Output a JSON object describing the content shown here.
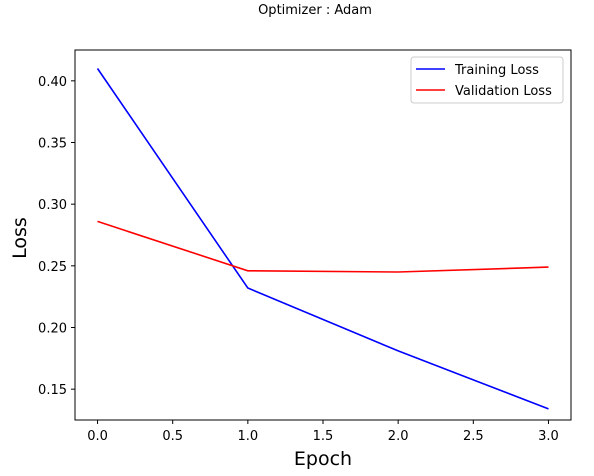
{
  "chart_data": {
    "type": "line",
    "title": "Optimizer : Adam",
    "xlabel": "Epoch",
    "ylabel": "Loss",
    "xlim": [
      -0.15,
      3.15
    ],
    "ylim": [
      0.125,
      0.425
    ],
    "x_ticks": [
      0.0,
      0.5,
      1.0,
      1.5,
      2.0,
      2.5,
      3.0
    ],
    "x_tick_labels": [
      "0.0",
      "0.5",
      "1.0",
      "1.5",
      "2.0",
      "2.5",
      "3.0"
    ],
    "y_ticks": [
      0.15,
      0.2,
      0.25,
      0.3,
      0.35,
      0.4
    ],
    "y_tick_labels": [
      "0.15",
      "0.20",
      "0.25",
      "0.30",
      "0.35",
      "0.40"
    ],
    "x": [
      0,
      1,
      2,
      3
    ],
    "series": [
      {
        "name": "Training Loss",
        "color": "#0000ff",
        "values": [
          0.41,
          0.232,
          0.181,
          0.134
        ]
      },
      {
        "name": "Validation Loss",
        "color": "#ff0000",
        "values": [
          0.286,
          0.246,
          0.245,
          0.249
        ]
      }
    ],
    "grid": false,
    "legend_position": "top-right"
  }
}
